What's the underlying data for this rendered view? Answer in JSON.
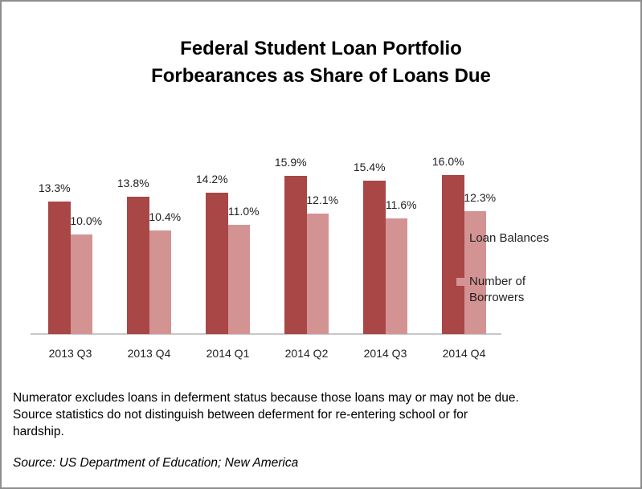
{
  "chart_data": {
    "type": "bar",
    "title": "Federal Student Loan Portfolio Forbearances as Share of Loans Due",
    "title_lines": [
      "Federal Student Loan Portfolio",
      "Forbearances as Share of Loans Due"
    ],
    "categories": [
      "2013 Q3",
      "2013 Q4",
      "2014 Q1",
      "2014 Q2",
      "2014 Q3",
      "2014 Q4"
    ],
    "series": [
      {
        "name": "Loan Balances",
        "color": "#a94646",
        "values": [
          13.3,
          13.8,
          14.2,
          15.9,
          15.4,
          16.0
        ],
        "labels": [
          "13.3%",
          "13.8%",
          "14.2%",
          "15.9%",
          "15.4%",
          "16.0%"
        ]
      },
      {
        "name": "Number of Borrowers",
        "color": "#d49393",
        "values": [
          10.0,
          10.4,
          11.0,
          12.1,
          11.6,
          12.3
        ],
        "labels": [
          "10.0%",
          "10.4%",
          "11.0%",
          "12.1%",
          "11.6%",
          "12.3%"
        ]
      }
    ],
    "xlabel": "",
    "ylabel": "",
    "ylim": [
      0,
      16.0
    ],
    "grid": false,
    "legend_position": "right",
    "legend": [
      "Loan Balances",
      "Number of Borrowers"
    ]
  },
  "legend": {
    "item1": "Loan Balances",
    "item2_line1": "Number of",
    "item2_line2": "Borrowers"
  },
  "footer": {
    "note_line1": "Numerator excludes loans in deferment status because those loans may or may not be due.",
    "note_line2": "Source statistics do not distinguish between deferment for re-entering school or for",
    "note_line3": "hardship.",
    "source": "Source: US Department of Education; New America"
  }
}
